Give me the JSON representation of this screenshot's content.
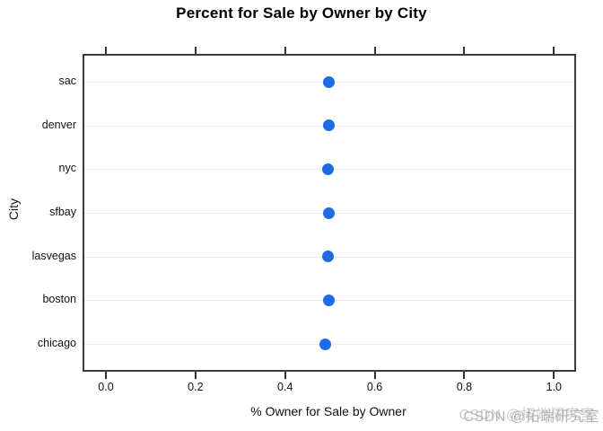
{
  "figure": {
    "watermark_text": "CSDN @拓端研究室"
  },
  "chart_data": {
    "type": "scatter",
    "subtype": "dotchart-horizontal",
    "title": "Percent for Sale by Owner by City",
    "xlabel": "% Owner for Sale by Owner",
    "ylabel": "City",
    "categories": [
      "sac",
      "denver",
      "nyc",
      "sfbay",
      "lasvegas",
      "boston",
      "chicago"
    ],
    "values": [
      0.497,
      0.497,
      0.495,
      0.497,
      0.495,
      0.497,
      0.489
    ],
    "x_ticks": [
      {
        "label": "0.0",
        "value": 0.0
      },
      {
        "label": "0.2",
        "value": 0.2
      },
      {
        "label": "0.4",
        "value": 0.4
      },
      {
        "label": "0.6",
        "value": 0.6
      },
      {
        "label": "0.8",
        "value": 0.8
      },
      {
        "label": "1.0",
        "value": 1.0
      }
    ],
    "xlim": [
      -0.048,
      1.047
    ],
    "grid": "horizontal-light",
    "legend": "none",
    "colors": {
      "point": "#1d6be5",
      "grid_line": "#ececec",
      "plot_border": "#3c3c3c",
      "tick": "#333333",
      "text": "#111111",
      "watermark": "#a9a9a9",
      "background": "#ffffff"
    }
  }
}
